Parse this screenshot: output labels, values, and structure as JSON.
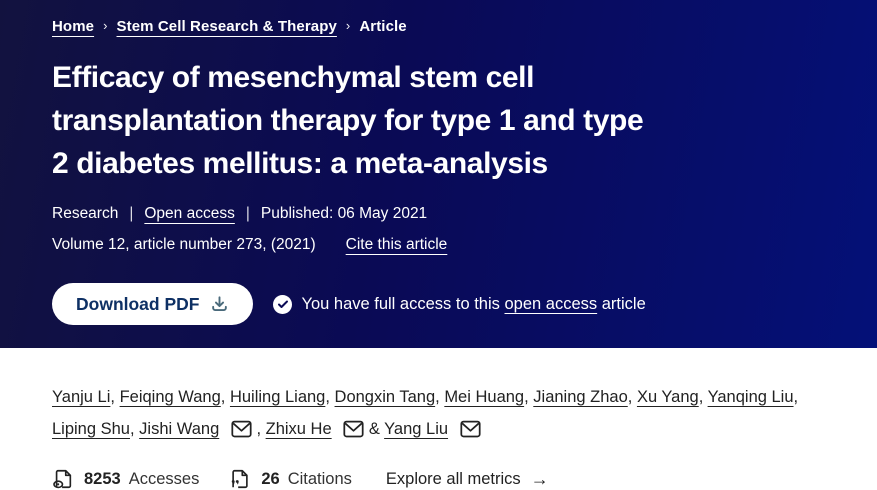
{
  "colors": {
    "header_gradient_left": "#12123f",
    "header_gradient_right": "#041078",
    "header_text": "#ffffff",
    "button_bg": "#ffffff",
    "button_text": "#0e3064",
    "body_text": "#222222"
  },
  "breadcrumb": {
    "items": [
      {
        "label": "Home",
        "link": true
      },
      {
        "label": "Stem Cell Research & Therapy",
        "link": true
      },
      {
        "label": "Article",
        "link": false
      }
    ],
    "separator": "›"
  },
  "article": {
    "title_lines": [
      "Efficacy of mesenchymal stem cell",
      "transplantation therapy for type 1 and type",
      "2 diabetes mellitus: a meta-analysis"
    ],
    "type_label": "Research",
    "open_access_label": "Open access",
    "published_label": "Published: 06 May 2021",
    "volume_text": "Volume 12, article number 273, (2021)",
    "cite_link_label": "Cite this article",
    "download_button_label": "Download PDF",
    "access_note_prefix": "You have full access to this",
    "access_note_link": "open access",
    "access_note_suffix": "article"
  },
  "authors": {
    "list": [
      {
        "name": "Yanju Li",
        "email": false
      },
      {
        "name": "Feiqing Wang",
        "email": false
      },
      {
        "name": "Huiling Liang",
        "email": false
      },
      {
        "name": "Dongxin Tang",
        "email": false
      },
      {
        "name": "Mei Huang",
        "email": false
      },
      {
        "name": "Jianing Zhao",
        "email": false
      },
      {
        "name": "Xu Yang",
        "email": false
      },
      {
        "name": "Yanqing Liu",
        "email": false
      },
      {
        "name": "Liping Shu",
        "email": false
      },
      {
        "name": "Jishi Wang",
        "email": true
      },
      {
        "name": "Zhixu He",
        "email": true
      },
      {
        "name": "Yang Liu",
        "email": true
      }
    ],
    "separator": ", ",
    "last_separator": " & "
  },
  "metrics": {
    "accesses_value": "8253",
    "accesses_label": "Accesses",
    "citations_value": "26",
    "citations_label": "Citations",
    "explore_link_label": "Explore all metrics",
    "arrow": "→"
  }
}
